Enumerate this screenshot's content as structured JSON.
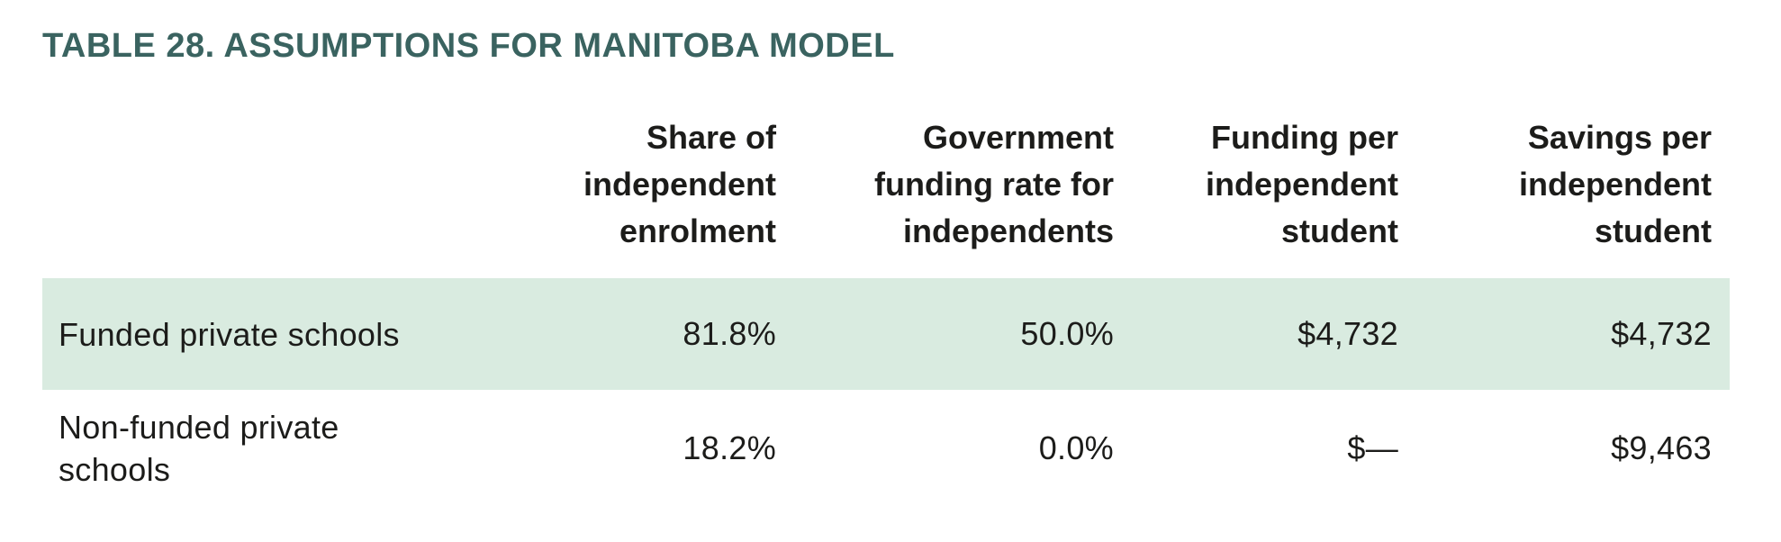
{
  "page": {
    "title": "TABLE 28. ASSUMPTIONS FOR MANITOBA MODEL"
  },
  "colors": {
    "title_teal": "#3a6360",
    "highlight_green": "#d9ebe0",
    "text_dark": "#1c1c1a"
  },
  "table": {
    "columns": [
      {
        "label": "",
        "lines": [
          "",
          "",
          ""
        ]
      },
      {
        "label": "Share of independent enrolment",
        "lines": [
          "Share of",
          "independent",
          "enrolment"
        ]
      },
      {
        "label": "Government funding rate for independents",
        "lines": [
          "Government",
          "funding rate for",
          "independents"
        ]
      },
      {
        "label": "Funding per independent student",
        "lines": [
          "Funding per",
          "independent",
          "student"
        ]
      },
      {
        "label": "Savings per independent student",
        "lines": [
          "Savings per",
          "independent",
          "student"
        ]
      }
    ],
    "rows": [
      {
        "label": "Funded private schools",
        "highlighted": true,
        "values": [
          "81.8%",
          "50.0%",
          "$4,732",
          "$4,732"
        ]
      },
      {
        "label": "Non-funded private schools",
        "highlighted": false,
        "values": [
          "18.2%",
          "0.0%",
          "$—",
          "$9,463"
        ]
      }
    ]
  }
}
